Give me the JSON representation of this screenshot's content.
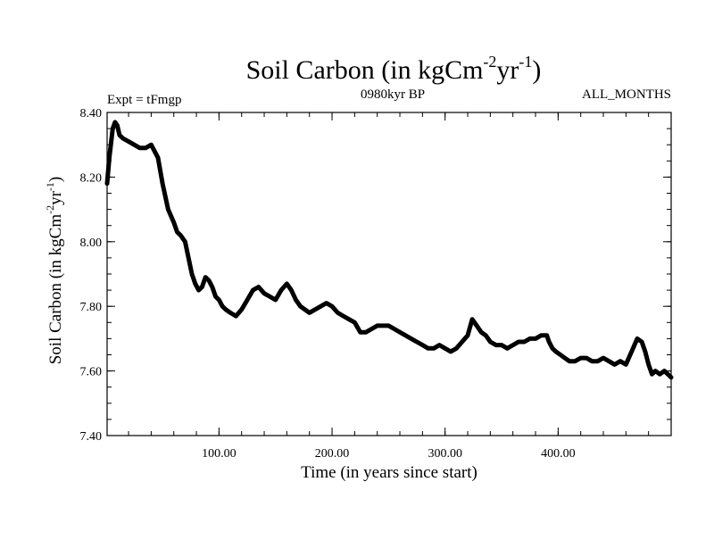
{
  "chart_data": {
    "type": "line",
    "title_main": "Soil Carbon (in kgCm",
    "title_sup1": "-2",
    "title_mid": "yr",
    "title_sup2": "-1",
    "title_end": ")",
    "subtitle_left": "Expt = tFmgp",
    "subtitle_center": "0980kyr BP",
    "subtitle_right": "ALL_MONTHS",
    "xlabel": "Time (in years since start)",
    "ylabel_main": "Soil Carbon (in kgCm",
    "ylabel_sup1": "-2",
    "ylabel_mid": "yr",
    "ylabel_sup2": "-1",
    "ylabel_end": ")",
    "xlim": [
      1,
      500
    ],
    "ylim": [
      7.4,
      8.4
    ],
    "x_ticks": [
      100,
      200,
      300,
      400
    ],
    "x_tick_labels": [
      "100.00",
      "200.00",
      "300.00",
      "400.00"
    ],
    "y_ticks": [
      7.4,
      7.6,
      7.8,
      8.0,
      8.2,
      8.4
    ],
    "y_tick_labels": [
      "7.40",
      "7.60",
      "7.80",
      "8.00",
      "8.20",
      "8.40"
    ],
    "series": [
      {
        "name": "Soil Carbon",
        "color": "#000000",
        "x": [
          1,
          3,
          6,
          8,
          10,
          12,
          15,
          20,
          25,
          30,
          35,
          40,
          43,
          46,
          50,
          55,
          60,
          63,
          66,
          70,
          73,
          76,
          79,
          82,
          85,
          88,
          91,
          94,
          97,
          100,
          103,
          106,
          110,
          115,
          120,
          125,
          130,
          135,
          140,
          145,
          150,
          155,
          160,
          164,
          168,
          172,
          176,
          180,
          185,
          190,
          195,
          200,
          205,
          210,
          215,
          220,
          225,
          230,
          235,
          240,
          245,
          250,
          255,
          260,
          265,
          270,
          275,
          280,
          285,
          290,
          295,
          300,
          305,
          310,
          315,
          320,
          324,
          328,
          332,
          336,
          340,
          345,
          350,
          355,
          360,
          365,
          370,
          375,
          380,
          385,
          390,
          392,
          395,
          398,
          402,
          406,
          410,
          415,
          420,
          425,
          430,
          435,
          440,
          445,
          450,
          455,
          460,
          465,
          470,
          474,
          477,
          480,
          483,
          486,
          490,
          494,
          497,
          500
        ],
        "y": [
          8.18,
          8.26,
          8.35,
          8.37,
          8.36,
          8.33,
          8.32,
          8.31,
          8.3,
          8.29,
          8.29,
          8.3,
          8.28,
          8.26,
          8.18,
          8.1,
          8.06,
          8.03,
          8.02,
          8.0,
          7.95,
          7.9,
          7.87,
          7.85,
          7.86,
          7.89,
          7.88,
          7.86,
          7.83,
          7.82,
          7.8,
          7.79,
          7.78,
          7.77,
          7.79,
          7.82,
          7.85,
          7.86,
          7.84,
          7.83,
          7.82,
          7.85,
          7.87,
          7.85,
          7.82,
          7.8,
          7.79,
          7.78,
          7.79,
          7.8,
          7.81,
          7.8,
          7.78,
          7.77,
          7.76,
          7.75,
          7.72,
          7.72,
          7.73,
          7.74,
          7.74,
          7.74,
          7.73,
          7.72,
          7.71,
          7.7,
          7.69,
          7.68,
          7.67,
          7.67,
          7.68,
          7.67,
          7.66,
          7.67,
          7.69,
          7.71,
          7.76,
          7.74,
          7.72,
          7.71,
          7.69,
          7.68,
          7.68,
          7.67,
          7.68,
          7.69,
          7.69,
          7.7,
          7.7,
          7.71,
          7.71,
          7.69,
          7.67,
          7.66,
          7.65,
          7.64,
          7.63,
          7.63,
          7.64,
          7.64,
          7.63,
          7.63,
          7.64,
          7.63,
          7.62,
          7.63,
          7.62,
          7.66,
          7.7,
          7.69,
          7.66,
          7.62,
          7.59,
          7.6,
          7.59,
          7.6,
          7.59,
          7.58
        ]
      }
    ]
  }
}
